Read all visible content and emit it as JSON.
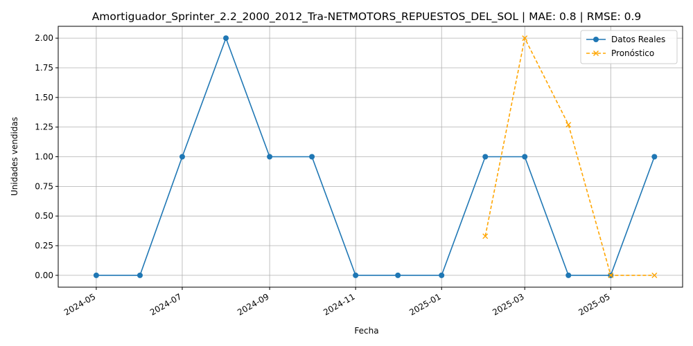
{
  "chart_data": {
    "type": "line",
    "title": "Amortiguador_Sprinter_2.2_2000_2012_Tra-NETMOTORS_REPUESTOS_DEL_SOL | MAE: 0.8 | RMSE: 0.9",
    "xlabel": "Fecha",
    "ylabel": "Unidades vendidas",
    "x_tick_labels": [
      "2024-05",
      "2024-07",
      "2024-09",
      "2024-11",
      "2025-01",
      "2025-03",
      "2025-05"
    ],
    "y_tick_labels": [
      "0.00",
      "0.25",
      "0.50",
      "0.75",
      "1.00",
      "1.25",
      "1.50",
      "1.75",
      "2.00"
    ],
    "ylim": [
      -0.1,
      2.1
    ],
    "xlim": [
      "2024-04-04",
      "2025-06-21"
    ],
    "grid": true,
    "legend_position": "top-right",
    "series": [
      {
        "name": "Datos Reales",
        "color": "#1f77b4",
        "style": "solid",
        "marker": "circle",
        "x": [
          "2024-05-01",
          "2024-06-01",
          "2024-07-01",
          "2024-08-01",
          "2024-09-01",
          "2024-10-01",
          "2024-11-01",
          "2024-12-01",
          "2025-01-01",
          "2025-02-01",
          "2025-03-01",
          "2025-04-01",
          "2025-05-01",
          "2025-06-01"
        ],
        "values": [
          0,
          0,
          1,
          2,
          1,
          1,
          0,
          0,
          0,
          1,
          1,
          0,
          0,
          1
        ]
      },
      {
        "name": "Pronóstico",
        "color": "#ffa500",
        "style": "dashed",
        "marker": "x",
        "x": [
          "2025-02-01",
          "2025-03-01",
          "2025-04-01",
          "2025-05-01",
          "2025-06-01"
        ],
        "values": [
          0.33,
          2.0,
          1.27,
          0.0,
          0.0
        ]
      }
    ]
  }
}
